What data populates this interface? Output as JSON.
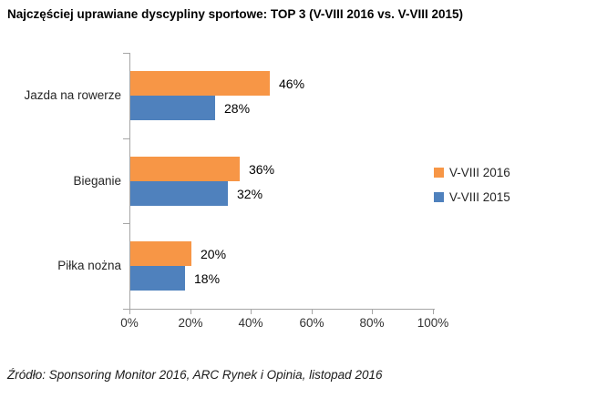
{
  "title": "Najczęściej uprawiane dyscypliny sportowe: TOP 3 (V-VIII 2016 vs. V-VIII 2015)",
  "source": "Źródło: Sponsoring Monitor 2016, ARC Rynek i Opinia, listopad 2016",
  "chart_data": {
    "type": "bar",
    "orientation": "horizontal",
    "title": "Najczęściej uprawiane dyscypliny sportowe: TOP 3 (V-VIII 2016 vs. V-VIII 2015)",
    "categories": [
      "Jazda na rowerze",
      "Bieganie",
      "Piłka nożna"
    ],
    "series": [
      {
        "name": "V-VIII 2016",
        "color": "#F79646",
        "values": [
          46,
          36,
          20
        ]
      },
      {
        "name": "V-VIII 2015",
        "color": "#4F81BD",
        "values": [
          28,
          32,
          18
        ]
      }
    ],
    "data_labels": [
      [
        "46%",
        "36%",
        "20%"
      ],
      [
        "28%",
        "32%",
        "18%"
      ]
    ],
    "xlabel": "",
    "ylabel": "",
    "xlim": [
      0,
      100
    ],
    "x_tick_labels": [
      "0%",
      "20%",
      "40%",
      "60%",
      "80%",
      "100%"
    ],
    "grid": false,
    "legend_position": "right"
  },
  "colors": {
    "axis": "#a6a6a6",
    "series_2016": "#F79646",
    "series_2015": "#4F81BD"
  }
}
